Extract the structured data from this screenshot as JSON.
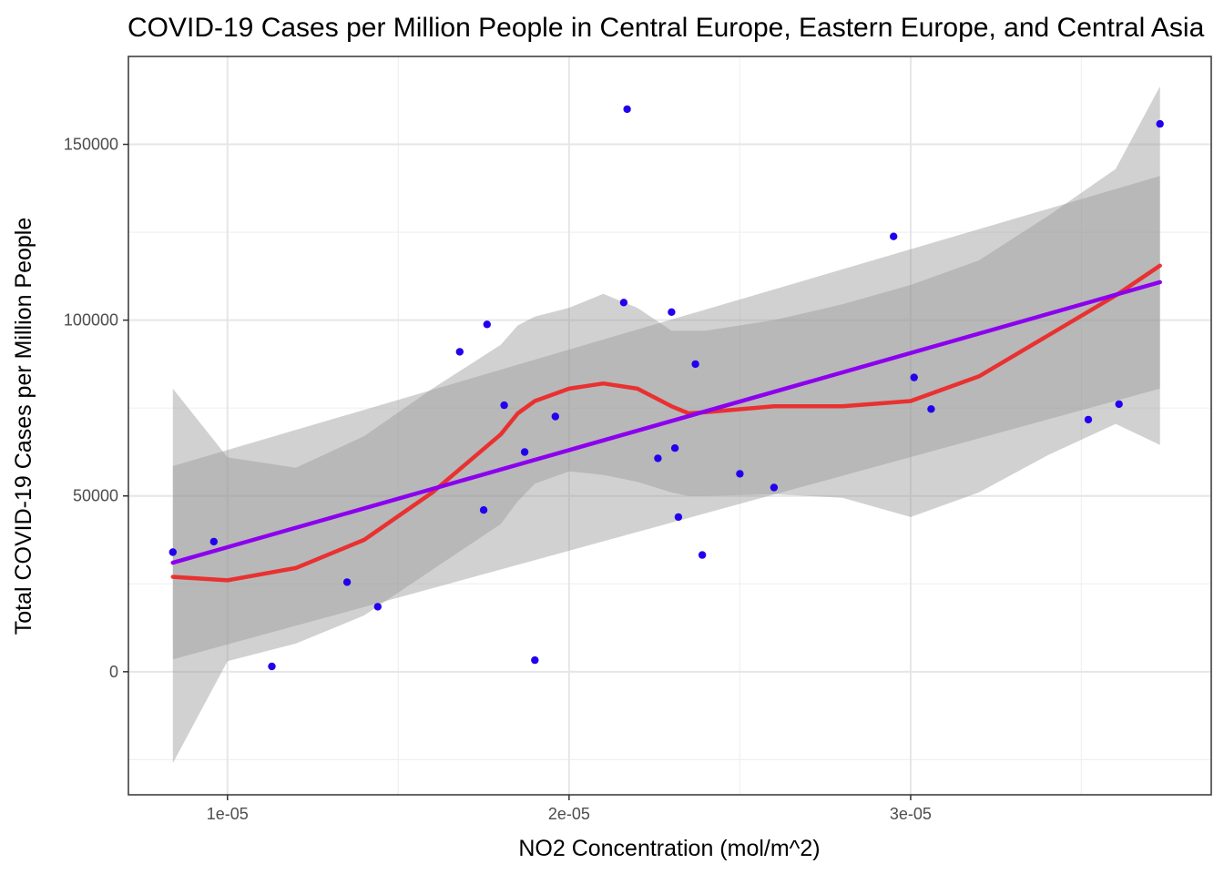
{
  "chart_data": {
    "type": "scatter",
    "title": "COVID-19 Cases per Million People in Central Europe, Eastern Europe, and Central Asia",
    "xlabel": "NO2 Concentration (mol/m^2)",
    "ylabel": "Total COVID-19 Cases per Million People",
    "xlim": [
      7.1e-06,
      3.88e-05
    ],
    "ylim": [
      -35000,
      175000
    ],
    "x_ticks": [
      1e-05,
      2e-05,
      3e-05
    ],
    "x_tick_labels": [
      "1e-05",
      "2e-05",
      "3e-05"
    ],
    "y_ticks": [
      0,
      50000,
      100000,
      150000
    ],
    "y_tick_labels": [
      "0",
      "50000",
      "100000",
      "150000"
    ],
    "grid": true,
    "colors": {
      "points": "#2200ee",
      "linear_fit": "#8c00ee",
      "loess_fit": "#ee2222",
      "confidence_band": "#999999"
    },
    "points": [
      {
        "x": 8.4e-06,
        "y": 34000
      },
      {
        "x": 9.6e-06,
        "y": 37000
      },
      {
        "x": 1.13e-05,
        "y": 1500
      },
      {
        "x": 1.35e-05,
        "y": 25500
      },
      {
        "x": 1.44e-05,
        "y": 18500
      },
      {
        "x": 1.68e-05,
        "y": 91000
      },
      {
        "x": 1.75e-05,
        "y": 46000
      },
      {
        "x": 1.76e-05,
        "y": 98800
      },
      {
        "x": 1.81e-05,
        "y": 75800
      },
      {
        "x": 1.87e-05,
        "y": 62500
      },
      {
        "x": 1.9e-05,
        "y": 3300
      },
      {
        "x": 1.96e-05,
        "y": 72600
      },
      {
        "x": 2.16e-05,
        "y": 105000
      },
      {
        "x": 2.17e-05,
        "y": 160000
      },
      {
        "x": 2.26e-05,
        "y": 60700
      },
      {
        "x": 2.3e-05,
        "y": 102300
      },
      {
        "x": 2.31e-05,
        "y": 63600
      },
      {
        "x": 2.32e-05,
        "y": 44000
      },
      {
        "x": 2.37e-05,
        "y": 87500
      },
      {
        "x": 2.39e-05,
        "y": 33200
      },
      {
        "x": 2.5e-05,
        "y": 56300
      },
      {
        "x": 2.6e-05,
        "y": 52400
      },
      {
        "x": 2.95e-05,
        "y": 123800
      },
      {
        "x": 3.01e-05,
        "y": 83700
      },
      {
        "x": 3.06e-05,
        "y": 74700
      },
      {
        "x": 3.52e-05,
        "y": 71700
      },
      {
        "x": 3.61e-05,
        "y": 76100
      },
      {
        "x": 3.73e-05,
        "y": 155800
      }
    ],
    "linear_fit": {
      "x": [
        8.4e-06,
        3.73e-05
      ],
      "y": [
        31000,
        110800
      ],
      "ci_lower": [
        3500,
        80500
      ],
      "ci_upper": [
        58500,
        141000
      ]
    },
    "loess_fit": {
      "x": [
        8.4e-06,
        1e-05,
        1.2e-05,
        1.4e-05,
        1.6e-05,
        1.8e-05,
        1.85e-05,
        1.9e-05,
        2e-05,
        2.1e-05,
        2.2e-05,
        2.3e-05,
        2.35e-05,
        2.4e-05,
        2.6e-05,
        2.8e-05,
        3e-05,
        3.2e-05,
        3.4e-05,
        3.6e-05,
        3.73e-05
      ],
      "y": [
        27000,
        26000,
        29500,
        37500,
        51000,
        67500,
        73500,
        77000,
        80500,
        82000,
        80500,
        75500,
        73500,
        73800,
        75500,
        75500,
        77000,
        84000,
        95500,
        107000,
        115500
      ],
      "ci_lower": [
        -26000,
        3000,
        8000,
        16000,
        29000,
        42000,
        48500,
        53500,
        57000,
        56000,
        54000,
        51000,
        50000,
        50000,
        50500,
        49500,
        44000,
        51000,
        61500,
        70500,
        64500
      ],
      "ci_upper": [
        80500,
        61000,
        58000,
        67000,
        80500,
        93000,
        98500,
        101000,
        103500,
        107500,
        103500,
        97000,
        97000,
        97000,
        100000,
        104500,
        110000,
        117000,
        129500,
        143000,
        166500
      ]
    }
  }
}
